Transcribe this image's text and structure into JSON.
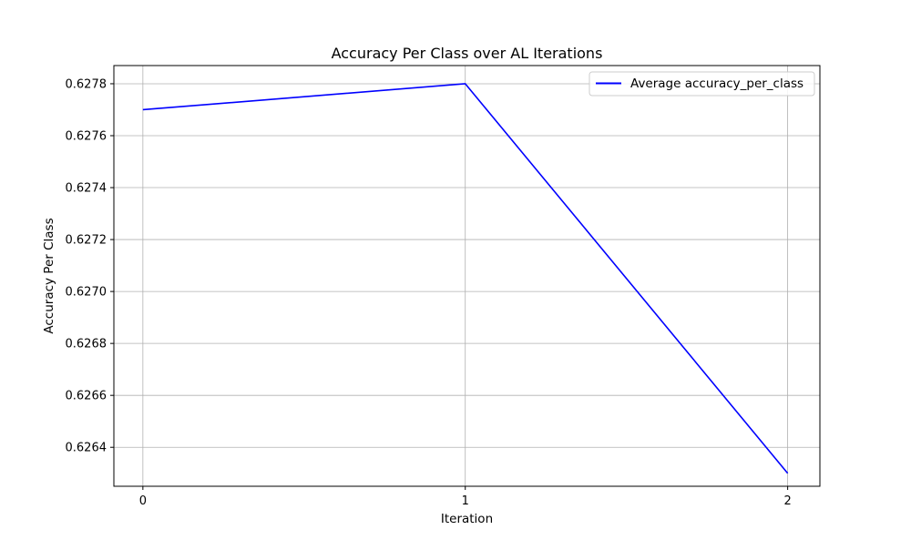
{
  "chart_data": {
    "type": "line",
    "title": "Accuracy Per Class over AL Iterations",
    "xlabel": "Iteration",
    "ylabel": "Accuracy Per Class",
    "x": [
      0,
      1,
      2
    ],
    "xticks": [
      "0",
      "1",
      "2"
    ],
    "yticks": [
      "0.6264",
      "0.6266",
      "0.6268",
      "0.6270",
      "0.6272",
      "0.6274",
      "0.6276",
      "0.6278"
    ],
    "ylim": [
      0.62625,
      0.62787
    ],
    "xlim": [
      -0.09,
      2.1
    ],
    "grid": true,
    "legend_position": "top-right",
    "series": [
      {
        "name": "Average accuracy_per_class",
        "color": "#0000ff",
        "values": [
          0.6277,
          0.6278,
          0.6263
        ]
      }
    ]
  }
}
